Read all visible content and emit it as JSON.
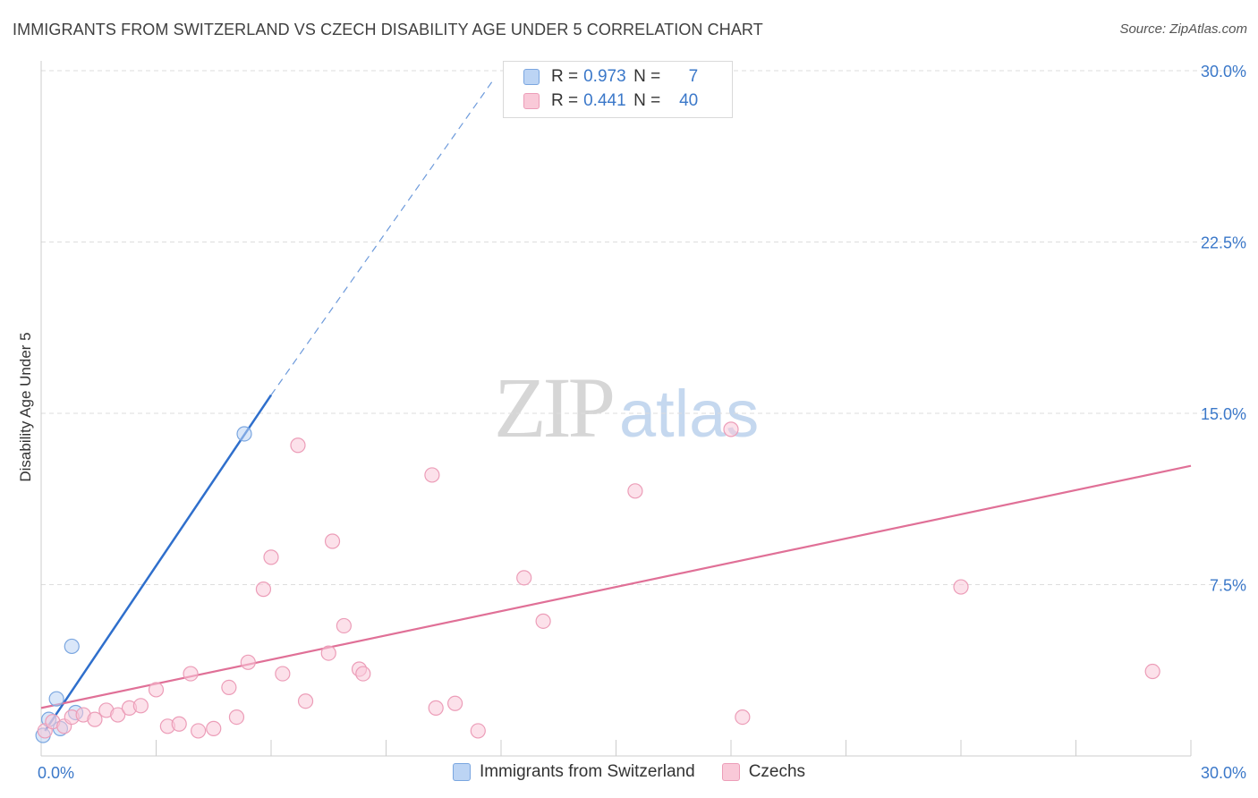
{
  "title": "IMMIGRANTS FROM SWITZERLAND VS CZECH DISABILITY AGE UNDER 5 CORRELATION CHART",
  "source": "Source: ZipAtlas.com",
  "watermark": {
    "zip": "ZIP",
    "atlas": "atlas"
  },
  "legend_top": {
    "r_label": "R =",
    "n_label": "N =",
    "rows": [
      {
        "r": "0.973",
        "n": "7"
      },
      {
        "r": "0.441",
        "n": "40"
      }
    ]
  },
  "colors": {
    "blue": "#2f6fcc",
    "blue_fill": "#bcd4f4",
    "blue_stroke": "#7aa6e0",
    "pink": "#e07097",
    "pink_fill": "#f9c9d8",
    "pink_stroke": "#ec9db8",
    "grid": "#dddddd",
    "tick_label": "#3b78c9"
  },
  "chart_data": {
    "type": "scatter",
    "title": "IMMIGRANTS FROM SWITZERLAND VS CZECH DISABILITY AGE UNDER 5 CORRELATION CHART",
    "xlabel": "",
    "ylabel": "Disability Age Under 5",
    "xlim": [
      0,
      30
    ],
    "ylim": [
      0,
      30
    ],
    "x_tick_labels": [
      "0.0%",
      "30.0%"
    ],
    "y_ticks": [
      7.5,
      15.0,
      22.5,
      30.0
    ],
    "y_tick_labels": [
      "7.5%",
      "15.0%",
      "22.5%",
      "30.0%"
    ],
    "grid": true,
    "legend_position": "bottom",
    "series": [
      {
        "name": "Immigrants from Switzerland",
        "color": "blue",
        "r": 0.973,
        "n": 7,
        "points": [
          {
            "x": 0.05,
            "y": 0.9
          },
          {
            "x": 0.2,
            "y": 1.6
          },
          {
            "x": 0.4,
            "y": 2.5
          },
          {
            "x": 0.5,
            "y": 1.2
          },
          {
            "x": 0.8,
            "y": 4.8
          },
          {
            "x": 0.9,
            "y": 1.9
          },
          {
            "x": 5.3,
            "y": 14.1
          }
        ],
        "trend": {
          "x0": 0.1,
          "y0": 1.1,
          "x1": 6.0,
          "y1": 15.8,
          "dashed_to": {
            "x": 11.8,
            "y": 29.6
          }
        }
      },
      {
        "name": "Czechs",
        "color": "pink",
        "r": 0.441,
        "n": 40,
        "points": [
          {
            "x": 0.1,
            "y": 1.1
          },
          {
            "x": 0.3,
            "y": 1.5
          },
          {
            "x": 0.6,
            "y": 1.3
          },
          {
            "x": 0.8,
            "y": 1.7
          },
          {
            "x": 1.1,
            "y": 1.8
          },
          {
            "x": 1.4,
            "y": 1.6
          },
          {
            "x": 1.7,
            "y": 2.0
          },
          {
            "x": 2.0,
            "y": 1.8
          },
          {
            "x": 2.3,
            "y": 2.1
          },
          {
            "x": 2.6,
            "y": 2.2
          },
          {
            "x": 3.0,
            "y": 2.9
          },
          {
            "x": 3.3,
            "y": 1.3
          },
          {
            "x": 3.6,
            "y": 1.4
          },
          {
            "x": 3.9,
            "y": 3.6
          },
          {
            "x": 4.1,
            "y": 1.1
          },
          {
            "x": 4.5,
            "y": 1.2
          },
          {
            "x": 4.9,
            "y": 3.0
          },
          {
            "x": 5.1,
            "y": 1.7
          },
          {
            "x": 5.4,
            "y": 4.1
          },
          {
            "x": 5.8,
            "y": 7.3
          },
          {
            "x": 6.0,
            "y": 8.7
          },
          {
            "x": 6.3,
            "y": 3.6
          },
          {
            "x": 6.9,
            "y": 2.4
          },
          {
            "x": 6.7,
            "y": 13.6
          },
          {
            "x": 7.5,
            "y": 4.5
          },
          {
            "x": 7.6,
            "y": 9.4
          },
          {
            "x": 7.9,
            "y": 5.7
          },
          {
            "x": 8.3,
            "y": 3.8
          },
          {
            "x": 8.4,
            "y": 3.6
          },
          {
            "x": 10.2,
            "y": 12.3
          },
          {
            "x": 10.3,
            "y": 2.1
          },
          {
            "x": 10.8,
            "y": 2.3
          },
          {
            "x": 11.4,
            "y": 1.1
          },
          {
            "x": 12.6,
            "y": 7.8
          },
          {
            "x": 13.1,
            "y": 5.9
          },
          {
            "x": 15.5,
            "y": 11.6
          },
          {
            "x": 18.0,
            "y": 14.3
          },
          {
            "x": 18.3,
            "y": 1.7
          },
          {
            "x": 24.0,
            "y": 7.4
          },
          {
            "x": 29.0,
            "y": 3.7
          }
        ],
        "trend": {
          "x0": 0.0,
          "y0": 2.1,
          "x1": 30.0,
          "y1": 12.7
        }
      }
    ]
  }
}
